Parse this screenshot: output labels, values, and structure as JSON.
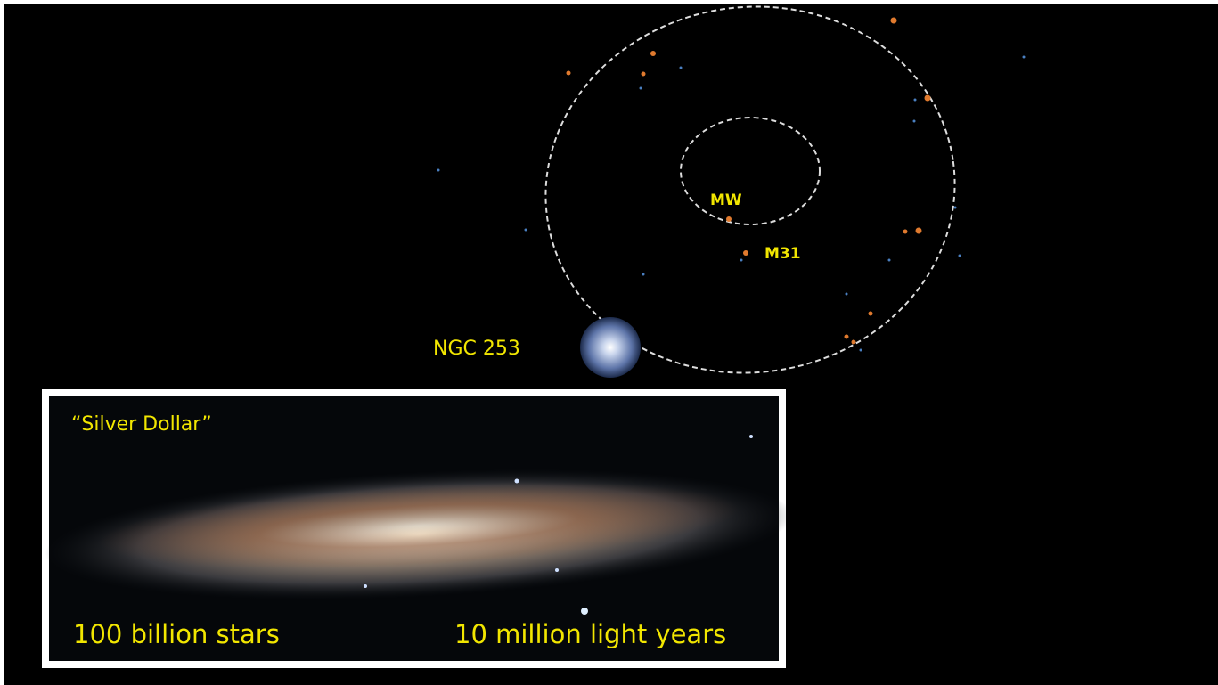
{
  "labels": {
    "mw": "MW",
    "m31": "M31",
    "ngc253": "NGC 253"
  },
  "inset": {
    "name": "“Silver Dollar”",
    "stars": "100 billion stars",
    "distance": "10 million light years"
  }
}
